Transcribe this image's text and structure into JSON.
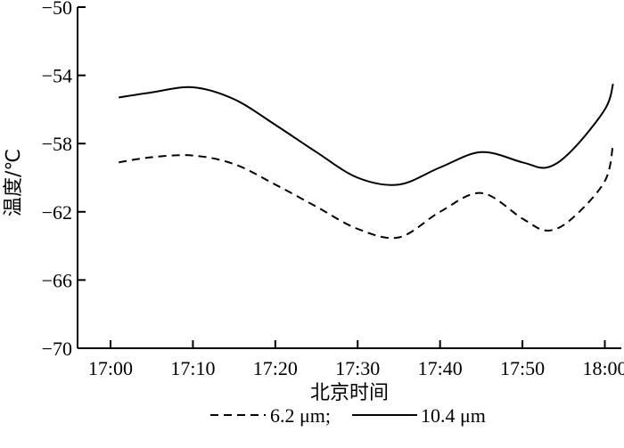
{
  "chart_data": {
    "type": "line",
    "xlabel": "北京时间",
    "ylabel": "温度/℃",
    "x_tick_labels": [
      "17:00",
      "17:10",
      "17:20",
      "17:30",
      "17:40",
      "17:50",
      "18:00"
    ],
    "y_ticks": [
      -50,
      -54,
      -58,
      -62,
      -66,
      -70
    ],
    "y_tick_labels": [
      "−50",
      "−54",
      "−58",
      "−62",
      "−66",
      "−70"
    ],
    "xlim": [
      "16:56",
      "18:02"
    ],
    "ylim": [
      -70,
      -50
    ],
    "grid": false,
    "legend": {
      "placement": "bottom",
      "text_1": "6.2 μm;",
      "text_2": "10.4 μm"
    },
    "series": [
      {
        "name": "6.2 μm",
        "style": "dashed",
        "color": "#000000",
        "points": [
          {
            "x": "17:01",
            "y": -59.1
          },
          {
            "x": "17:05",
            "y": -58.8
          },
          {
            "x": "17:10",
            "y": -58.7
          },
          {
            "x": "17:15",
            "y": -59.2
          },
          {
            "x": "17:20",
            "y": -60.4
          },
          {
            "x": "17:25",
            "y": -61.7
          },
          {
            "x": "17:30",
            "y": -63.0
          },
          {
            "x": "17:35",
            "y": -63.5
          },
          {
            "x": "17:40",
            "y": -62.0
          },
          {
            "x": "17:45",
            "y": -60.9
          },
          {
            "x": "17:50",
            "y": -62.4
          },
          {
            "x": "17:53",
            "y": -63.1
          },
          {
            "x": "17:56",
            "y": -62.4
          },
          {
            "x": "18:00",
            "y": -60.2
          },
          {
            "x": "18:01",
            "y": -58.0
          }
        ]
      },
      {
        "name": "10.4 μm",
        "style": "solid",
        "color": "#000000",
        "points": [
          {
            "x": "17:01",
            "y": -55.3
          },
          {
            "x": "17:05",
            "y": -55.0
          },
          {
            "x": "17:10",
            "y": -54.7
          },
          {
            "x": "17:15",
            "y": -55.4
          },
          {
            "x": "17:20",
            "y": -56.9
          },
          {
            "x": "17:25",
            "y": -58.5
          },
          {
            "x": "17:30",
            "y": -60.0
          },
          {
            "x": "17:35",
            "y": -60.4
          },
          {
            "x": "17:40",
            "y": -59.4
          },
          {
            "x": "17:45",
            "y": -58.5
          },
          {
            "x": "17:50",
            "y": -59.1
          },
          {
            "x": "17:53",
            "y": -59.4
          },
          {
            "x": "17:56",
            "y": -58.4
          },
          {
            "x": "18:00",
            "y": -56.0
          },
          {
            "x": "18:01",
            "y": -54.5
          }
        ]
      }
    ]
  }
}
